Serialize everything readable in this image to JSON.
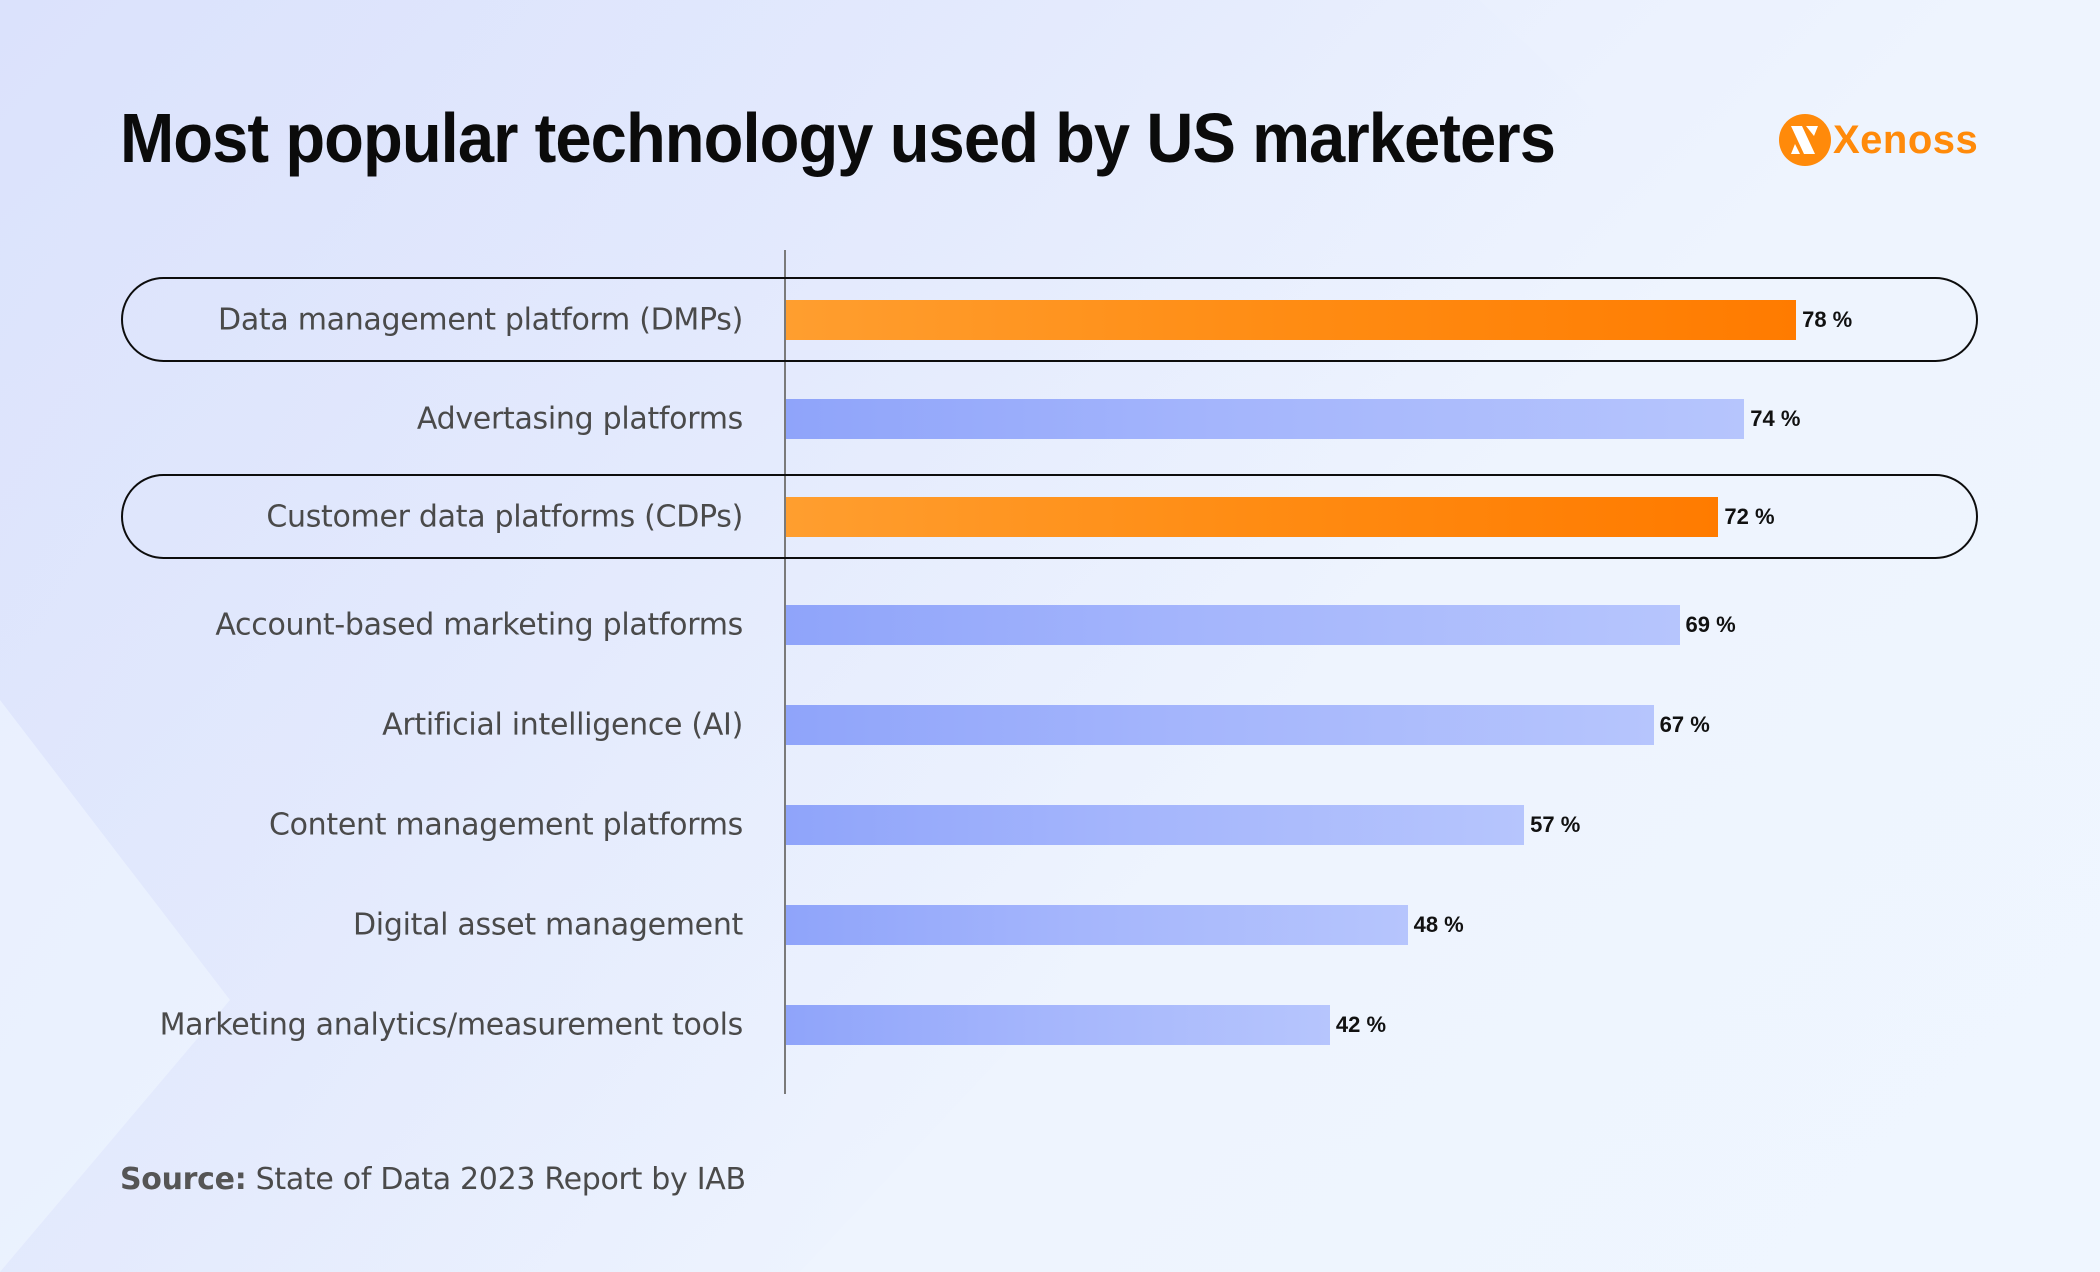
{
  "header": {
    "title": "Most popular technology used by US marketers",
    "logo_text": "Xenoss",
    "logo_icon": "xenoss-logo-icon"
  },
  "colors": {
    "highlight": "#ff8a0a",
    "normal": "#a4b5fc",
    "text": "#4a4a4a",
    "title": "#0b0b0b"
  },
  "footer": {
    "source_label": "Source:",
    "source_text": "State of Data 2023 Report by IAB"
  },
  "chart_data": {
    "type": "bar",
    "orientation": "horizontal",
    "title": "Most popular technology used by US marketers",
    "xlabel": "",
    "ylabel": "",
    "xlim": [
      0,
      100
    ],
    "unit": "%",
    "grid": false,
    "categories": [
      "Data management platform (DMPs)",
      "Advertasing platforms",
      "Customer data platforms (CDPs)",
      "Account-based marketing platforms",
      "Artificial intelligence (AI)",
      "Content management platforms",
      "Digital asset management",
      "Marketing analytics/measurement tools"
    ],
    "values": [
      78,
      74,
      72,
      69,
      67,
      57,
      48,
      42
    ],
    "value_labels": [
      "78 %",
      "74 %",
      "72 %",
      "69 %",
      "67 %",
      "57 %",
      "48 %",
      "42 %"
    ],
    "highlighted": [
      true,
      false,
      true,
      false,
      false,
      false,
      false,
      false
    ],
    "source": "State of Data 2023 Report by IAB"
  }
}
